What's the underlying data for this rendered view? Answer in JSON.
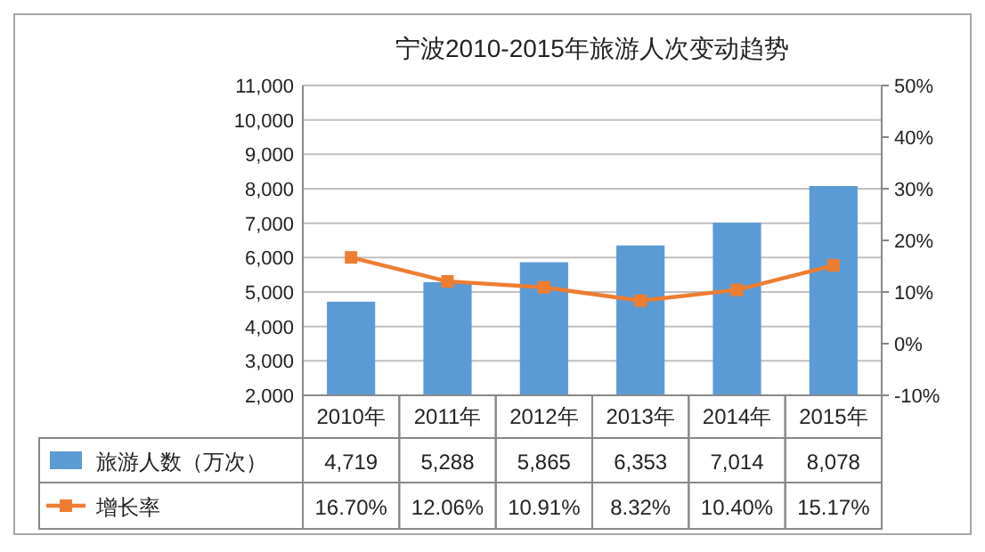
{
  "chart_data": {
    "type": "bar",
    "title": "宁波2010-2015年旅游人次变动趋势",
    "categories": [
      "2010年",
      "2011年",
      "2012年",
      "2013年",
      "2014年",
      "2015年"
    ],
    "series": [
      {
        "name": "旅游人数（万次）",
        "color": "#5b9bd5",
        "values": [
          4719,
          5288,
          5865,
          6353,
          7014,
          8078
        ],
        "value_labels": [
          "4,719",
          "5,288",
          "5,865",
          "6,353",
          "7,014",
          "8,078"
        ]
      },
      {
        "name": "增长率",
        "type": "line",
        "axis": "y2",
        "color": "#ed7d31",
        "values": [
          16.7,
          12.06,
          10.91,
          8.32,
          10.4,
          15.17
        ],
        "value_labels": [
          "16.70%",
          "12.06%",
          "10.91%",
          "8.32%",
          "10.40%",
          "15.17%"
        ]
      }
    ],
    "marker": "square",
    "grid": "y",
    "legend": "bottom left",
    "ylim": [
      2000,
      11000
    ],
    "yticks": [
      {
        "value": 2000,
        "label": "2,000"
      },
      {
        "value": 3000,
        "label": "3,000"
      },
      {
        "value": 4000,
        "label": "4,000"
      },
      {
        "value": 5000,
        "label": "5,000"
      },
      {
        "value": 6000,
        "label": "6,000"
      },
      {
        "value": 7000,
        "label": "7,000"
      },
      {
        "value": 8000,
        "label": "8,000"
      },
      {
        "value": 9000,
        "label": "9,000"
      },
      {
        "value": 10000,
        "label": "10,000"
      },
      {
        "value": 11000,
        "label": "11,000"
      }
    ],
    "y2lim": [
      -10,
      50
    ],
    "y2ticks": [
      {
        "value": -10,
        "label": "-10%"
      },
      {
        "value": 0,
        "label": "0%"
      },
      {
        "value": 10,
        "label": "10%"
      },
      {
        "value": 20,
        "label": "20%"
      },
      {
        "value": 30,
        "label": "30%"
      },
      {
        "value": 40,
        "label": "40%"
      },
      {
        "value": 50,
        "label": "50%"
      }
    ]
  }
}
